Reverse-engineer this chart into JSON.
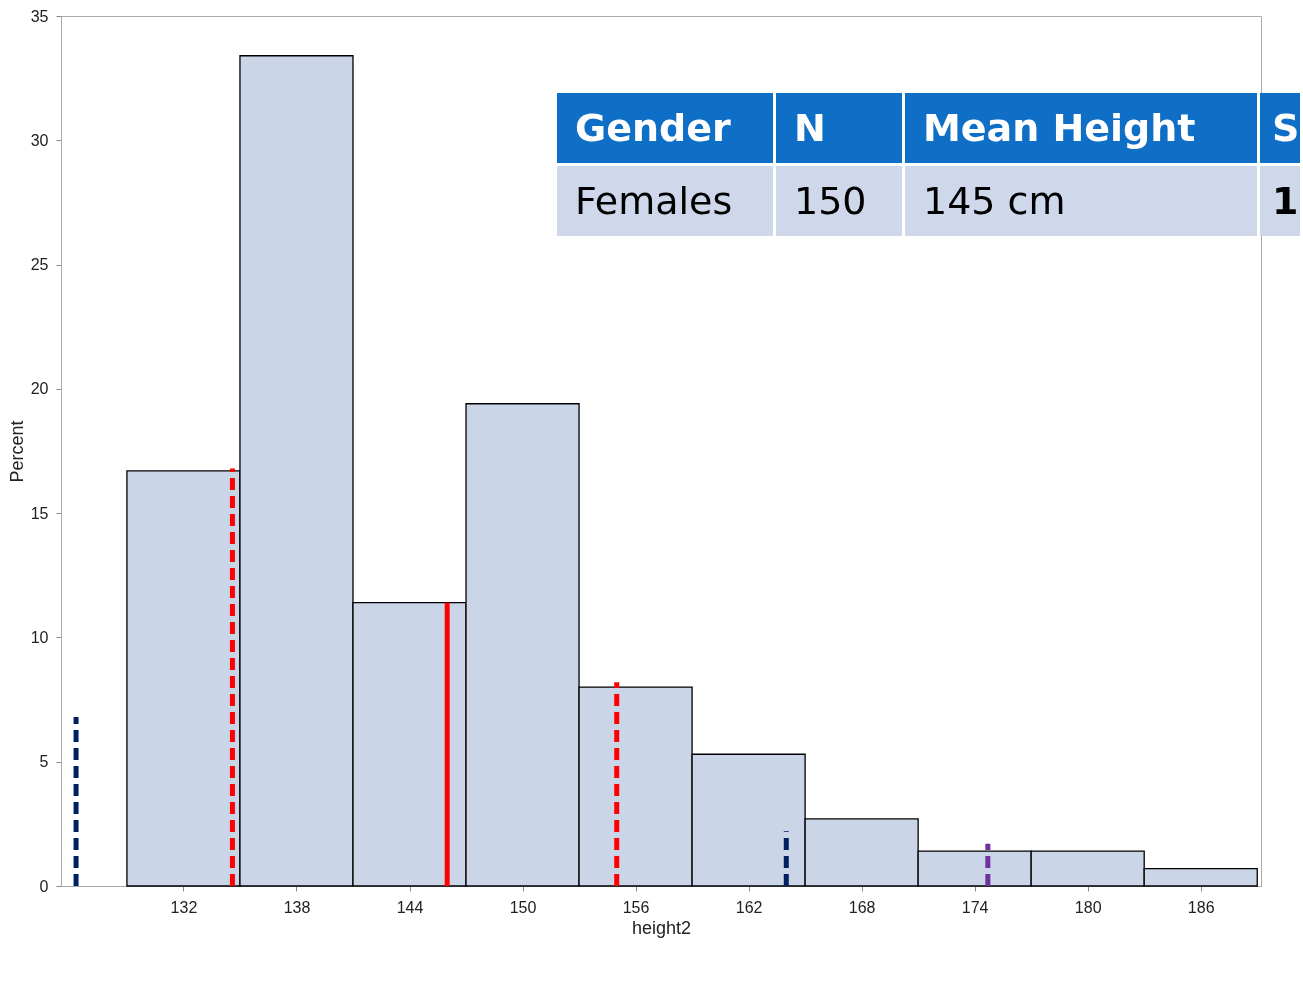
{
  "chart_data": {
    "type": "histogram",
    "xlabel": "height2",
    "ylabel": "Percent",
    "bins": [
      129,
      135,
      141,
      147,
      153,
      159,
      165,
      171,
      177,
      183,
      189
    ],
    "values": [
      16.7,
      33.4,
      11.4,
      19.4,
      8,
      5.3,
      2.7,
      1.4,
      1.4,
      0.7
    ],
    "color": "#cbd5e8",
    "xlim": [
      125.5,
      189.2
    ],
    "xticks": [
      132,
      138,
      144,
      150,
      156,
      162,
      168,
      174,
      180,
      186
    ],
    "ylim": [
      0,
      35
    ],
    "yticks": [
      0,
      5,
      10,
      15,
      20,
      25,
      30,
      35
    ],
    "grid": false,
    "series": [
      {
        "type": "line",
        "color": "#ff0000",
        "line_style": "dashed",
        "x": [
          134.6,
          134.6
        ],
        "values": [
          0,
          16.8
        ]
      },
      {
        "type": "line",
        "color": "#ff0000",
        "line_style": "solid",
        "x": [
          146,
          146
        ],
        "values": [
          0,
          11.4
        ]
      },
      {
        "type": "line",
        "color": "#ff0000",
        "line_style": "dashed",
        "x": [
          155,
          155
        ],
        "values": [
          0,
          8.2
        ]
      },
      {
        "type": "line",
        "color": "#002060",
        "line_style": "dashed",
        "x": [
          126.3,
          126.3
        ],
        "values": [
          0,
          6.8
        ]
      },
      {
        "type": "line",
        "color": "#002060",
        "line_style": "dashed",
        "x": [
          164,
          164
        ],
        "values": [
          0,
          2.2
        ]
      },
      {
        "type": "line",
        "color": "#7030a0",
        "line_style": "dashed",
        "x": [
          174.7,
          174.7
        ],
        "values": [
          0,
          1.7
        ]
      }
    ],
    "annotations": [
      "Gender",
      "N",
      "Mean Height",
      "S",
      "Females",
      "150",
      "145 cm",
      "1"
    ]
  }
}
